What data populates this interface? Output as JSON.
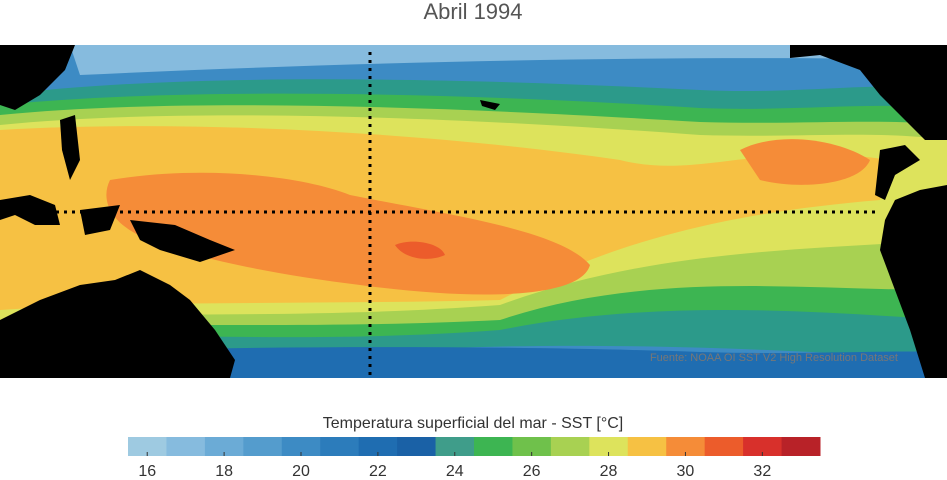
{
  "title": "Abril 1994",
  "source": "Fuente: NOAA OI SST V2 High Resolution Dataset",
  "colorbar": {
    "label": "Temperatura superficial del mar - SST  [°C]",
    "bins": [
      15.5,
      16.5,
      17.5,
      18.5,
      19.5,
      20.5,
      21.5,
      22.5,
      23.5,
      24.5,
      25.5,
      26.5,
      27.5,
      28.5,
      29.5,
      30.5,
      31.5,
      32.5,
      33.5
    ],
    "colors": [
      "#9ecae1",
      "#86bbde",
      "#6babd6",
      "#549ccd",
      "#3d8bc4",
      "#2c7cbb",
      "#1f6db1",
      "#1a61a6",
      "#3f9d8a",
      "#3db552",
      "#6fc14b",
      "#a8d152",
      "#dde35c",
      "#f6c143",
      "#f58c38",
      "#ec5c2b",
      "#d8302b",
      "#b82228"
    ],
    "ticks": [
      16,
      18,
      20,
      22,
      24,
      26,
      28,
      30,
      32
    ]
  }
}
